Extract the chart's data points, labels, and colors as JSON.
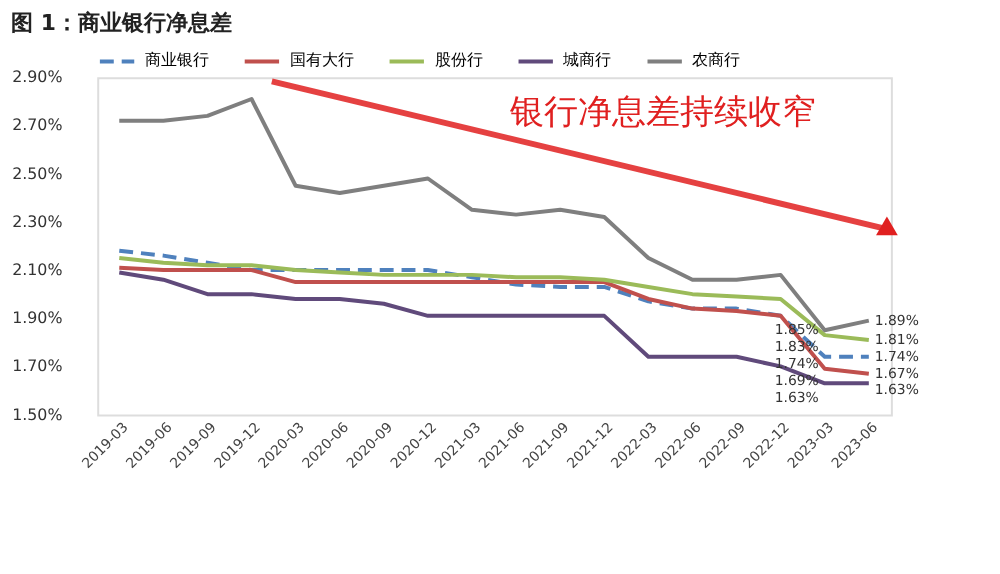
{
  "chart_data": {
    "type": "line",
    "title": "图 1：商业银行净息差",
    "categories": [
      "2019-03",
      "2019-06",
      "2019-09",
      "2019-12",
      "2020-03",
      "2020-06",
      "2020-09",
      "2020-12",
      "2021-03",
      "2021-06",
      "2021-09",
      "2021-12",
      "2022-03",
      "2022-06",
      "2022-09",
      "2022-12",
      "2023-03",
      "2023-06"
    ],
    "series": [
      {
        "name": "商业银行",
        "color": "#4f81bd",
        "line_style": "dashed",
        "values": [
          2.18,
          2.16,
          2.13,
          2.1,
          2.1,
          2.1,
          2.1,
          2.1,
          2.07,
          2.04,
          2.03,
          2.03,
          1.97,
          1.94,
          1.94,
          1.91,
          1.74,
          1.74
        ],
        "value_labels": [
          null,
          null,
          null,
          null,
          null,
          null,
          null,
          null,
          null,
          null,
          null,
          null,
          null,
          null,
          null,
          null,
          "1.74%",
          "1.74%"
        ]
      },
      {
        "name": "国有大行",
        "color": "#c0504d",
        "line_style": "solid",
        "values": [
          2.11,
          2.1,
          2.1,
          2.1,
          2.05,
          2.05,
          2.05,
          2.05,
          2.05,
          2.05,
          2.05,
          2.05,
          1.98,
          1.94,
          1.93,
          1.91,
          1.69,
          1.67
        ],
        "value_labels": [
          null,
          null,
          null,
          null,
          null,
          null,
          null,
          null,
          null,
          null,
          null,
          null,
          null,
          null,
          null,
          null,
          "1.69%",
          "1.67%"
        ]
      },
      {
        "name": "股份行",
        "color": "#9bbb59",
        "line_style": "solid",
        "values": [
          2.15,
          2.13,
          2.12,
          2.12,
          2.1,
          2.09,
          2.08,
          2.08,
          2.08,
          2.07,
          2.07,
          2.06,
          2.03,
          2.0,
          1.99,
          1.98,
          1.83,
          1.81
        ],
        "value_labels": [
          null,
          null,
          null,
          null,
          null,
          null,
          null,
          null,
          null,
          null,
          null,
          null,
          null,
          null,
          null,
          null,
          "1.83%",
          "1.81%"
        ]
      },
      {
        "name": "城商行",
        "color": "#604a7b",
        "line_style": "solid",
        "values": [
          2.09,
          2.06,
          2.0,
          2.0,
          1.98,
          1.98,
          1.96,
          1.91,
          1.91,
          1.91,
          1.91,
          1.91,
          1.74,
          1.74,
          1.74,
          1.7,
          1.63,
          1.63
        ],
        "value_labels": [
          null,
          null,
          null,
          null,
          null,
          null,
          null,
          null,
          null,
          null,
          null,
          null,
          null,
          null,
          null,
          null,
          "1.63%",
          "1.63%"
        ]
      },
      {
        "name": "农商行",
        "color": "#7f7f7f",
        "line_style": "solid",
        "values": [
          2.72,
          2.72,
          2.74,
          2.81,
          2.45,
          2.42,
          2.45,
          2.48,
          2.35,
          2.33,
          2.35,
          2.32,
          2.15,
          2.06,
          2.06,
          2.08,
          1.85,
          1.89
        ],
        "value_labels": [
          null,
          null,
          null,
          null,
          null,
          null,
          null,
          null,
          null,
          null,
          null,
          null,
          null,
          null,
          null,
          null,
          "1.85%",
          "1.89%"
        ]
      }
    ],
    "ylim": [
      1.5,
      2.9
    ],
    "yticks": [
      {
        "value": 1.5,
        "label": "1.50%"
      },
      {
        "value": 1.7,
        "label": "1.70%"
      },
      {
        "value": 1.9,
        "label": "1.90%"
      },
      {
        "value": 2.1,
        "label": "2.10%"
      },
      {
        "value": 2.3,
        "label": "2.30%"
      },
      {
        "value": 2.5,
        "label": "2.50%"
      },
      {
        "value": 2.7,
        "label": "2.70%"
      },
      {
        "value": 2.9,
        "label": "2.90%"
      }
    ],
    "annotations": [
      "银行净息差持续收窄"
    ],
    "legend": "top",
    "grid": false,
    "marker": "none"
  }
}
